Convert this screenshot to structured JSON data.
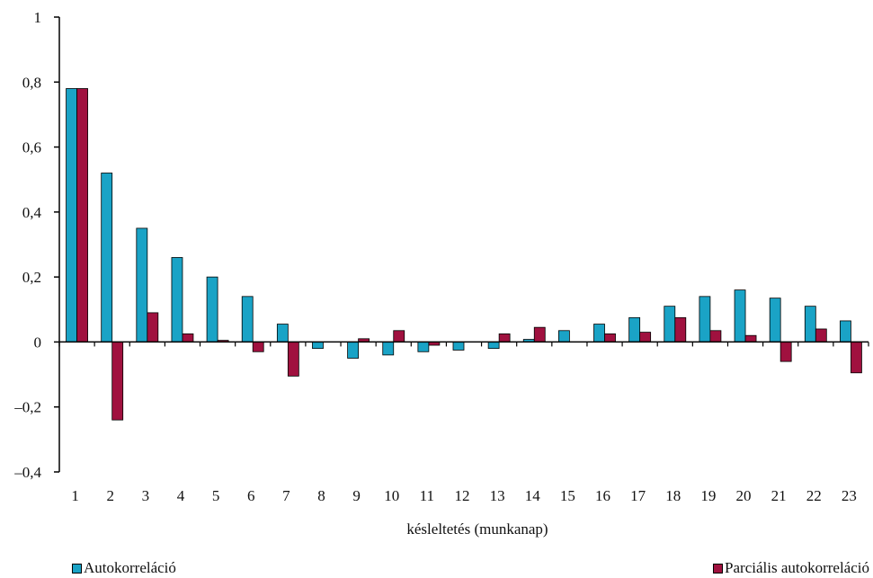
{
  "chart_data": {
    "type": "bar",
    "title": "",
    "xlabel": "késleltetés (munkanap)",
    "ylabel": "",
    "ylim": [
      -0.4,
      1
    ],
    "yticks": [
      {
        "v": 1,
        "label": "1"
      },
      {
        "v": 0.8,
        "label": "0,8"
      },
      {
        "v": 0.6,
        "label": "0,6"
      },
      {
        "v": 0.4,
        "label": "0,4"
      },
      {
        "v": 0.2,
        "label": "0,2"
      },
      {
        "v": 0,
        "label": "0"
      },
      {
        "v": -0.2,
        "label": "–0,2"
      },
      {
        "v": -0.4,
        "label": "–0,4"
      }
    ],
    "categories": [
      "1",
      "2",
      "3",
      "4",
      "5",
      "6",
      "7",
      "8",
      "9",
      "10",
      "11",
      "12",
      "13",
      "14",
      "15",
      "16",
      "17",
      "18",
      "19",
      "20",
      "21",
      "22",
      "23"
    ],
    "series": [
      {
        "name": "Autokorreláció",
        "color": "#1aa3c6",
        "values": [
          0.78,
          0.52,
          0.35,
          0.26,
          0.2,
          0.14,
          0.055,
          -0.02,
          -0.05,
          -0.04,
          -0.03,
          -0.025,
          -0.02,
          0.008,
          0.035,
          0.055,
          0.075,
          0.11,
          0.14,
          0.16,
          0.135,
          0.11,
          0.065
        ]
      },
      {
        "name": "Parciális autokorreláció",
        "color": "#a0113f",
        "values": [
          0.78,
          -0.24,
          0.09,
          0.025,
          0.005,
          -0.03,
          -0.105,
          0.0,
          0.01,
          0.035,
          -0.01,
          0.0,
          0.025,
          0.045,
          0.0,
          0.025,
          0.03,
          0.075,
          0.035,
          0.02,
          -0.06,
          0.04,
          -0.095
        ]
      }
    ],
    "legend_position": "bottom",
    "grid": false
  }
}
